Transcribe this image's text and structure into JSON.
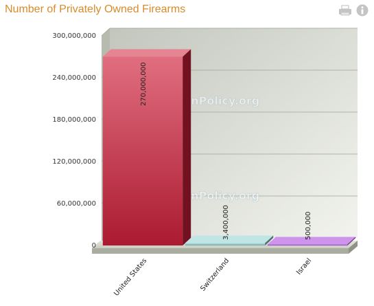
{
  "title": "Number of Privately Owned Firearms",
  "toolbar": {
    "icons": [
      "printer-icon",
      "info-icon"
    ],
    "color": "#c2c2c2"
  },
  "watermark": "GunPolicy.org",
  "chart_data": {
    "type": "bar",
    "title": "Number of Privately Owned Firearms",
    "categories": [
      "United States",
      "Switzerland",
      "Israel"
    ],
    "values": [
      270000000,
      3400000,
      500000
    ],
    "value_labels": [
      "270,000,000",
      "3,400,000",
      "500,000"
    ],
    "bar_colors": [
      "#d0203a",
      "#8ecfcf",
      "#a53cdc"
    ],
    "ylim": [
      0,
      300000000
    ],
    "yticks": [
      0,
      60000000,
      120000000,
      180000000,
      240000000,
      300000000
    ],
    "ytick_labels": [
      "0",
      "60,000,000",
      "120,000,000",
      "180,000,000",
      "240,000,000",
      "300,000,000"
    ],
    "xlabel": "",
    "ylabel": "",
    "grid": true,
    "legend": "none"
  }
}
